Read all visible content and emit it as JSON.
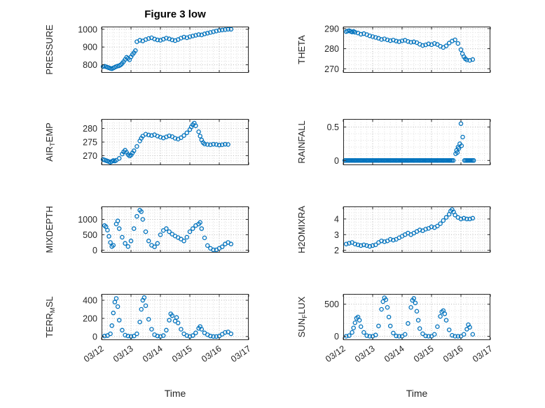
{
  "title": "Figure 3 low",
  "xlabel": "Time",
  "colors": {
    "marker": "#0072BD",
    "axis": "#262626",
    "grid": "#b5b5b5",
    "minor_grid": "#dedede"
  },
  "xticks": [
    {
      "v": 12,
      "label": "03/12"
    },
    {
      "v": 13,
      "label": "03/13"
    },
    {
      "v": 14,
      "label": "03/14"
    },
    {
      "v": 15,
      "label": "03/15"
    },
    {
      "v": 16,
      "label": "03/16"
    },
    {
      "v": 17,
      "label": "03/17"
    }
  ],
  "chart_data": [
    {
      "id": "pressure",
      "type": "scatter",
      "ylabel_parts": [
        {
          "t": "PRESSURE"
        }
      ],
      "ylim": [
        755,
        1015
      ],
      "xlim": [
        12,
        17
      ],
      "ytick_values": [
        800,
        900,
        1000
      ],
      "ytick_labels": [
        "800",
        "900",
        "1000"
      ],
      "x": [
        12.05,
        12.1,
        12.15,
        12.2,
        12.25,
        12.3,
        12.35,
        12.4,
        12.45,
        12.5,
        12.55,
        12.6,
        12.65,
        12.7,
        12.75,
        12.8,
        12.85,
        12.9,
        12.95,
        13.0,
        13.05,
        13.1,
        13.15,
        13.2,
        13.3,
        13.4,
        13.5,
        13.6,
        13.7,
        13.8,
        13.9,
        14.0,
        14.1,
        14.2,
        14.3,
        14.4,
        14.5,
        14.6,
        14.7,
        14.8,
        14.9,
        15.0,
        15.1,
        15.2,
        15.3,
        15.4,
        15.5,
        15.6,
        15.7,
        15.8,
        15.9,
        16.0,
        16.1,
        16.2,
        16.3,
        16.4
      ],
      "y": [
        790,
        792,
        789,
        786,
        783,
        780,
        778,
        782,
        786,
        790,
        793,
        795,
        800,
        808,
        818,
        830,
        842,
        836,
        828,
        845,
        858,
        868,
        880,
        930,
        938,
        934,
        942,
        948,
        952,
        945,
        940,
        938,
        944,
        950,
        946,
        940,
        936,
        942,
        950,
        956,
        952,
        958,
        962,
        966,
        970,
        968,
        974,
        978,
        982,
        986,
        990,
        994,
        996,
        998,
        1000,
        1000
      ]
    },
    {
      "id": "theta",
      "type": "scatter",
      "ylabel_parts": [
        {
          "t": "THETA"
        }
      ],
      "ylim": [
        268,
        291
      ],
      "xlim": [
        12,
        17
      ],
      "ytick_values": [
        270,
        280,
        290
      ],
      "ytick_labels": [
        "270",
        "280",
        "290"
      ],
      "x": [
        12.1,
        12.15,
        12.2,
        12.25,
        12.3,
        12.35,
        12.4,
        12.5,
        12.6,
        12.7,
        12.8,
        12.9,
        13.0,
        13.1,
        13.2,
        13.3,
        13.4,
        13.5,
        13.6,
        13.7,
        13.8,
        13.9,
        14.0,
        14.1,
        14.2,
        14.3,
        14.4,
        14.5,
        14.6,
        14.7,
        14.8,
        14.9,
        15.0,
        15.1,
        15.2,
        15.3,
        15.4,
        15.5,
        15.6,
        15.7,
        15.8,
        15.9,
        16.0,
        16.05,
        16.1,
        16.15,
        16.2,
        16.3,
        16.4
      ],
      "y": [
        288.5,
        288.8,
        289.0,
        288.6,
        288.3,
        288.6,
        288.2,
        287.8,
        287.2,
        287.5,
        287.0,
        286.4,
        286.0,
        285.6,
        285.2,
        284.6,
        284.9,
        284.4,
        284.0,
        284.3,
        283.8,
        283.5,
        283.9,
        284.2,
        283.6,
        283.2,
        283.4,
        283.0,
        282.2,
        281.6,
        281.9,
        282.4,
        282.0,
        282.6,
        282.1,
        281.2,
        280.6,
        281.4,
        282.8,
        283.8,
        284.4,
        282.6,
        279.5,
        277.5,
        276.0,
        275.0,
        274.4,
        274.2,
        274.6
      ]
    },
    {
      "id": "air-temp",
      "type": "scatter",
      "ylabel_parts": [
        {
          "t": "AIR"
        },
        {
          "t": "T",
          "sub": true
        },
        {
          "t": "EMP"
        }
      ],
      "ylim": [
        266.5,
        283.5
      ],
      "xlim": [
        12,
        17
      ],
      "ytick_values": [
        270,
        275,
        280
      ],
      "ytick_labels": [
        "270",
        "275",
        "280"
      ],
      "x": [
        12.05,
        12.1,
        12.15,
        12.2,
        12.25,
        12.3,
        12.35,
        12.4,
        12.45,
        12.5,
        12.6,
        12.7,
        12.75,
        12.8,
        12.85,
        12.9,
        12.95,
        13.0,
        13.05,
        13.1,
        13.2,
        13.3,
        13.35,
        13.4,
        13.5,
        13.6,
        13.7,
        13.8,
        13.9,
        14.0,
        14.1,
        14.2,
        14.3,
        14.4,
        14.5,
        14.6,
        14.7,
        14.8,
        14.9,
        15.0,
        15.05,
        15.1,
        15.15,
        15.2,
        15.3,
        15.35,
        15.4,
        15.45,
        15.5,
        15.6,
        15.7,
        15.8,
        15.9,
        16.0,
        16.1,
        16.2,
        16.3
      ],
      "y": [
        268.6,
        268.4,
        268.2,
        268.0,
        267.8,
        267.6,
        267.9,
        268.2,
        268.0,
        268.3,
        269.0,
        270.6,
        271.4,
        272.0,
        271.2,
        270.4,
        269.9,
        270.2,
        271.0,
        271.8,
        273.4,
        275.4,
        276.4,
        277.2,
        277.9,
        277.6,
        277.4,
        277.7,
        277.2,
        276.8,
        276.5,
        276.9,
        277.3,
        277.0,
        276.4,
        276.1,
        276.6,
        277.4,
        278.4,
        279.6,
        280.6,
        281.4,
        282.0,
        281.0,
        278.8,
        277.2,
        275.8,
        274.8,
        274.3,
        274.1,
        274.0,
        274.2,
        274.1,
        273.9,
        274.0,
        274.2,
        274.1
      ]
    },
    {
      "id": "rainfall",
      "type": "scatter",
      "ylabel_parts": [
        {
          "t": "RAINFALL"
        }
      ],
      "ylim": [
        -0.07,
        0.62
      ],
      "xlim": [
        12,
        17
      ],
      "ytick_values": [
        0,
        0.5
      ],
      "ytick_labels": [
        "0",
        "0.5"
      ],
      "zero_runs": [
        [
          12.05,
          15.78
        ],
        [
          16.12,
          16.45
        ]
      ],
      "zero_step": 0.045,
      "x": [
        15.82,
        15.85,
        15.88,
        15.9,
        15.93,
        15.96,
        16.0,
        16.02,
        16.06
      ],
      "y": [
        0.1,
        0.15,
        0.12,
        0.2,
        0.18,
        0.25,
        0.55,
        0.22,
        0.35
      ]
    },
    {
      "id": "mixdepth",
      "type": "scatter",
      "ylabel_parts": [
        {
          "t": "MIXDEPTH"
        }
      ],
      "ylim": [
        -80,
        1420
      ],
      "xlim": [
        12,
        17
      ],
      "ytick_values": [
        0,
        500,
        1000
      ],
      "ytick_labels": [
        "0",
        "500",
        "1000"
      ],
      "x": [
        12.1,
        12.15,
        12.2,
        12.25,
        12.3,
        12.35,
        12.4,
        12.5,
        12.55,
        12.6,
        12.7,
        12.8,
        12.9,
        13.0,
        13.1,
        13.2,
        13.3,
        13.35,
        13.4,
        13.5,
        13.6,
        13.7,
        13.8,
        13.9,
        14.0,
        14.1,
        14.2,
        14.3,
        14.4,
        14.5,
        14.6,
        14.7,
        14.8,
        14.9,
        15.0,
        15.1,
        15.2,
        15.3,
        15.35,
        15.4,
        15.5,
        15.6,
        15.7,
        15.8,
        15.9,
        16.0,
        16.1,
        16.2,
        16.3,
        16.4
      ],
      "y": [
        800,
        760,
        650,
        450,
        250,
        120,
        160,
        850,
        950,
        700,
        420,
        220,
        120,
        300,
        700,
        1100,
        1300,
        1250,
        1000,
        600,
        300,
        160,
        110,
        220,
        500,
        640,
        700,
        600,
        520,
        460,
        410,
        360,
        300,
        420,
        600,
        700,
        800,
        850,
        900,
        700,
        400,
        150,
        60,
        10,
        10,
        60,
        110,
        200,
        250,
        200
      ]
    },
    {
      "id": "h2omixra",
      "type": "scatter",
      "ylabel_parts": [
        {
          "t": "H2OMIXRA"
        }
      ],
      "ylim": [
        1.85,
        4.8
      ],
      "xlim": [
        12,
        17
      ],
      "ytick_values": [
        2,
        3,
        4
      ],
      "ytick_labels": [
        "2",
        "3",
        "4"
      ],
      "x": [
        12.1,
        12.2,
        12.3,
        12.4,
        12.5,
        12.6,
        12.7,
        12.8,
        12.9,
        13.0,
        13.1,
        13.2,
        13.3,
        13.4,
        13.5,
        13.6,
        13.7,
        13.8,
        13.9,
        14.0,
        14.1,
        14.2,
        14.3,
        14.4,
        14.5,
        14.6,
        14.7,
        14.8,
        14.9,
        15.0,
        15.1,
        15.2,
        15.3,
        15.4,
        15.5,
        15.6,
        15.65,
        15.7,
        15.75,
        15.8,
        15.9,
        16.0,
        16.1,
        16.2,
        16.3,
        16.4
      ],
      "y": [
        2.4,
        2.45,
        2.5,
        2.4,
        2.35,
        2.3,
        2.35,
        2.3,
        2.25,
        2.3,
        2.35,
        2.5,
        2.6,
        2.55,
        2.6,
        2.7,
        2.65,
        2.7,
        2.8,
        2.9,
        3.0,
        3.1,
        3.0,
        3.1,
        3.2,
        3.3,
        3.25,
        3.35,
        3.4,
        3.5,
        3.45,
        3.55,
        3.7,
        3.9,
        4.1,
        4.3,
        4.5,
        4.6,
        4.45,
        4.25,
        4.1,
        4.0,
        4.05,
        4.0,
        4.0,
        4.05
      ]
    },
    {
      "id": "terr-msl",
      "type": "scatter",
      "ylabel_parts": [
        {
          "t": "TERR"
        },
        {
          "t": "M",
          "sub": true
        },
        {
          "t": "SL"
        }
      ],
      "ylim": [
        -40,
        470
      ],
      "xlim": [
        12,
        17
      ],
      "ytick_values": [
        0,
        200,
        400
      ],
      "ytick_labels": [
        "0",
        "200",
        "400"
      ],
      "x": [
        12.1,
        12.2,
        12.3,
        12.35,
        12.4,
        12.45,
        12.5,
        12.55,
        12.6,
        12.7,
        12.8,
        12.9,
        13.0,
        13.1,
        13.2,
        13.3,
        13.35,
        13.4,
        13.45,
        13.5,
        13.6,
        13.7,
        13.8,
        13.9,
        14.0,
        14.1,
        14.2,
        14.3,
        14.35,
        14.4,
        14.5,
        14.55,
        14.6,
        14.7,
        14.8,
        14.9,
        15.0,
        15.1,
        15.2,
        15.3,
        15.35,
        15.4,
        15.5,
        15.6,
        15.7,
        15.8,
        15.9,
        16.0,
        16.1,
        16.2,
        16.3,
        16.4
      ],
      "y": [
        5,
        10,
        30,
        120,
        260,
        380,
        420,
        330,
        180,
        70,
        15,
        5,
        0,
        5,
        30,
        160,
        300,
        400,
        430,
        340,
        190,
        80,
        20,
        5,
        0,
        10,
        70,
        180,
        250,
        230,
        170,
        210,
        150,
        80,
        30,
        10,
        0,
        10,
        40,
        90,
        110,
        80,
        40,
        20,
        5,
        0,
        0,
        5,
        25,
        45,
        50,
        30
      ]
    },
    {
      "id": "sun-flux",
      "type": "scatter",
      "ylabel_parts": [
        {
          "t": "SUN"
        },
        {
          "t": "F",
          "sub": true
        },
        {
          "t": "LUX"
        }
      ],
      "ylim": [
        -60,
        660
      ],
      "xlim": [
        12,
        17
      ],
      "ytick_values": [
        0,
        500
      ],
      "ytick_labels": [
        "0",
        "500"
      ],
      "x": [
        12.1,
        12.2,
        12.3,
        12.35,
        12.4,
        12.45,
        12.5,
        12.55,
        12.6,
        12.7,
        12.8,
        12.9,
        13.0,
        13.1,
        13.2,
        13.3,
        13.35,
        13.4,
        13.45,
        13.5,
        13.55,
        13.6,
        13.7,
        13.8,
        13.9,
        14.0,
        14.1,
        14.2,
        14.3,
        14.35,
        14.4,
        14.45,
        14.5,
        14.55,
        14.6,
        14.7,
        14.8,
        14.9,
        15.0,
        15.1,
        15.2,
        15.3,
        15.35,
        15.4,
        15.45,
        15.5,
        15.6,
        15.7,
        15.8,
        15.9,
        16.0,
        16.1,
        16.2,
        16.25,
        16.3,
        16.4
      ],
      "y": [
        0,
        10,
        60,
        130,
        210,
        280,
        300,
        250,
        150,
        60,
        10,
        0,
        0,
        20,
        160,
        420,
        540,
        600,
        570,
        450,
        300,
        160,
        50,
        5,
        0,
        0,
        30,
        200,
        450,
        560,
        590,
        520,
        390,
        250,
        120,
        40,
        5,
        0,
        0,
        30,
        150,
        310,
        380,
        400,
        350,
        250,
        100,
        15,
        0,
        0,
        0,
        30,
        110,
        180,
        140,
        30
      ]
    }
  ]
}
